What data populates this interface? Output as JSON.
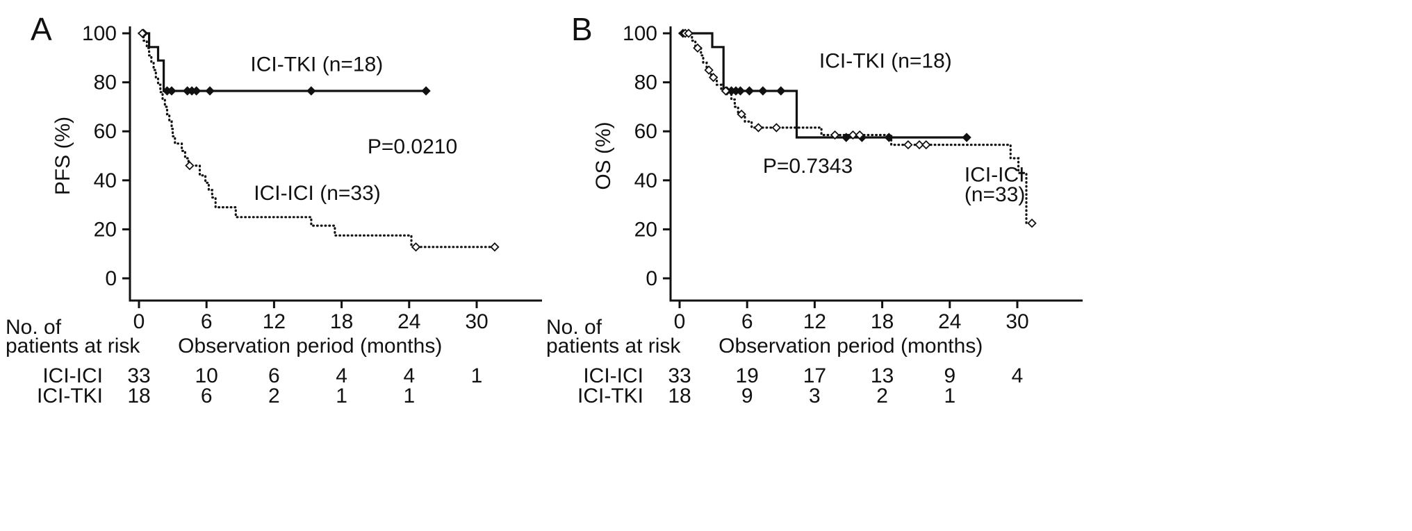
{
  "style": {
    "background": "#ffffff",
    "ink": "#111111"
  },
  "chart_data": [
    {
      "type": "line",
      "variant": "kaplan-meier-step",
      "panel_label": "A",
      "ylabel": "PFS (%)",
      "xlabel": "Observation period (months)",
      "xlim": [
        0,
        35.5
      ],
      "ylim": [
        0,
        100
      ],
      "xticks": [
        0,
        6,
        12,
        18,
        24,
        30
      ],
      "yticks": [
        0,
        20,
        40,
        60,
        80,
        100
      ],
      "grid": false,
      "p_value": "P=0.0210",
      "series": [
        {
          "name": "ICI-TKI (n=18)",
          "line": "solid",
          "steps": [
            [
              0,
              100
            ],
            [
              0.9,
              100
            ],
            [
              0.9,
              94.4
            ],
            [
              1.7,
              94.4
            ],
            [
              1.7,
              88.9
            ],
            [
              2.2,
              88.9
            ],
            [
              2.2,
              76.5
            ],
            [
              25.5,
              76.5
            ]
          ],
          "censors": [
            [
              0.4,
              100
            ],
            [
              2.5,
              76.5
            ],
            [
              2.9,
              76.5
            ],
            [
              4.3,
              76.5
            ],
            [
              4.7,
              76.5
            ],
            [
              5.1,
              76.5
            ],
            [
              6.3,
              76.5
            ],
            [
              15.3,
              76.5
            ],
            [
              25.5,
              76.5
            ]
          ]
        },
        {
          "name": "ICI-ICI (n=33)",
          "line": "dotted",
          "steps": [
            [
              0,
              100
            ],
            [
              0.4,
              100
            ],
            [
              0.4,
              97
            ],
            [
              0.7,
              97
            ],
            [
              0.7,
              94
            ],
            [
              0.9,
              94
            ],
            [
              0.9,
              91
            ],
            [
              1.1,
              91
            ],
            [
              1.1,
              88
            ],
            [
              1.3,
              88
            ],
            [
              1.3,
              85
            ],
            [
              1.5,
              85
            ],
            [
              1.5,
              82
            ],
            [
              1.7,
              82
            ],
            [
              1.7,
              79
            ],
            [
              1.9,
              79
            ],
            [
              1.9,
              76
            ],
            [
              2.1,
              76
            ],
            [
              2.1,
              73
            ],
            [
              2.3,
              73
            ],
            [
              2.3,
              70
            ],
            [
              2.5,
              70
            ],
            [
              2.5,
              67
            ],
            [
              2.7,
              67
            ],
            [
              2.7,
              64
            ],
            [
              2.9,
              64
            ],
            [
              2.9,
              61
            ],
            [
              3.0,
              61
            ],
            [
              3.0,
              58
            ],
            [
              3.2,
              58
            ],
            [
              3.2,
              55
            ],
            [
              3.8,
              55
            ],
            [
              3.8,
              52
            ],
            [
              4.1,
              52
            ],
            [
              4.1,
              49
            ],
            [
              4.4,
              49
            ],
            [
              4.4,
              46
            ],
            [
              5.4,
              46
            ],
            [
              5.4,
              42
            ],
            [
              5.9,
              42
            ],
            [
              5.9,
              39
            ],
            [
              6.2,
              39
            ],
            [
              6.2,
              36
            ],
            [
              6.5,
              36
            ],
            [
              6.5,
              33
            ],
            [
              6.8,
              33
            ],
            [
              6.8,
              29
            ],
            [
              8.6,
              29
            ],
            [
              8.6,
              25
            ],
            [
              15.3,
              25
            ],
            [
              15.3,
              21.5
            ],
            [
              17.4,
              21.5
            ],
            [
              17.4,
              17.5
            ],
            [
              24.2,
              17.5
            ],
            [
              24.2,
              12.8
            ],
            [
              31.6,
              12.8
            ]
          ],
          "censors": [
            [
              0.3,
              100
            ],
            [
              4.5,
              46
            ],
            [
              24.6,
              12.8
            ],
            [
              31.6,
              12.8
            ]
          ]
        }
      ],
      "annotations": [
        {
          "text": "ICI-TKI (n=18)",
          "x": 9.9,
          "y": 84.5,
          "name": "series-label-ici-tki"
        },
        {
          "text": "P=0.0210",
          "x": 20.3,
          "y": 51,
          "name": "p-value-label"
        },
        {
          "text": "ICI-ICI (n=33)",
          "x": 10.2,
          "y": 32,
          "name": "series-label-ici-ici"
        }
      ],
      "risk_table": {
        "caption_line1": "No. of",
        "caption_line2": "patients at risk",
        "times": [
          0,
          6,
          12,
          18,
          24,
          30
        ],
        "rows": [
          {
            "label": "ICI-ICI",
            "counts": [
              "33",
              "10",
              "6",
              "4",
              "4",
              "1"
            ]
          },
          {
            "label": "ICI-TKI",
            "counts": [
              "18",
              "6",
              "2",
              "1",
              "1",
              ""
            ]
          }
        ]
      }
    },
    {
      "type": "line",
      "variant": "kaplan-meier-step",
      "panel_label": "B",
      "ylabel": "OS (%)",
      "xlabel": "Observation period (months)",
      "xlim": [
        0,
        35.5
      ],
      "ylim": [
        0,
        100
      ],
      "xticks": [
        0,
        6,
        12,
        18,
        24,
        30
      ],
      "yticks": [
        0,
        20,
        40,
        60,
        80,
        100
      ],
      "grid": false,
      "p_value": "P=0.7343",
      "series": [
        {
          "name": "ICI-TKI (n=18)",
          "line": "solid",
          "steps": [
            [
              0,
              100
            ],
            [
              2.9,
              100
            ],
            [
              2.9,
              94.4
            ],
            [
              3.9,
              94.4
            ],
            [
              3.9,
              76.5
            ],
            [
              10.4,
              76.5
            ],
            [
              10.4,
              57.5
            ],
            [
              25.5,
              57.5
            ]
          ],
          "censors": [
            [
              0.3,
              100
            ],
            [
              4.2,
              76.5
            ],
            [
              4.6,
              76.5
            ],
            [
              5.0,
              76.5
            ],
            [
              5.4,
              76.5
            ],
            [
              6.2,
              76.5
            ],
            [
              7.4,
              76.5
            ],
            [
              9.0,
              76.5
            ],
            [
              14.8,
              57.5
            ],
            [
              16.2,
              57.5
            ],
            [
              18.6,
              57.5
            ],
            [
              25.5,
              57.5
            ]
          ]
        },
        {
          "name": "ICI-ICI (n=33)",
          "line": "dotted",
          "steps": [
            [
              0,
              100
            ],
            [
              1.1,
              100
            ],
            [
              1.1,
              97
            ],
            [
              1.4,
              97
            ],
            [
              1.4,
              94
            ],
            [
              1.9,
              94
            ],
            [
              1.9,
              91
            ],
            [
              2.1,
              91
            ],
            [
              2.1,
              88
            ],
            [
              2.4,
              88
            ],
            [
              2.4,
              85
            ],
            [
              2.8,
              85
            ],
            [
              2.8,
              82
            ],
            [
              3.3,
              82
            ],
            [
              3.3,
              79
            ],
            [
              3.7,
              79
            ],
            [
              3.7,
              76.5
            ],
            [
              4.6,
              76.5
            ],
            [
              4.6,
              73
            ],
            [
              4.9,
              73
            ],
            [
              4.9,
              70
            ],
            [
              5.2,
              70
            ],
            [
              5.2,
              67
            ],
            [
              5.8,
              67
            ],
            [
              5.8,
              64
            ],
            [
              6.4,
              64
            ],
            [
              6.4,
              61.5
            ],
            [
              12.6,
              61.5
            ],
            [
              12.6,
              58.5
            ],
            [
              18.8,
              58.5
            ],
            [
              18.8,
              54.5
            ],
            [
              29.4,
              54.5
            ],
            [
              29.4,
              49
            ],
            [
              30.1,
              49
            ],
            [
              30.1,
              43
            ],
            [
              30.8,
              43
            ],
            [
              30.8,
              22.5
            ],
            [
              31.3,
              22.5
            ]
          ],
          "censors": [
            [
              0.5,
              100
            ],
            [
              0.8,
              100
            ],
            [
              1.6,
              94
            ],
            [
              2.6,
              85
            ],
            [
              3.0,
              82
            ],
            [
              4.1,
              76.5
            ],
            [
              5.5,
              67
            ],
            [
              7.0,
              61.5
            ],
            [
              8.6,
              61.5
            ],
            [
              13.8,
              58.5
            ],
            [
              15.4,
              58.5
            ],
            [
              16.0,
              58.5
            ],
            [
              20.3,
              54.5
            ],
            [
              21.3,
              54.5
            ],
            [
              21.9,
              54.5
            ],
            [
              31.3,
              22.5
            ]
          ]
        }
      ],
      "annotations": [
        {
          "text": "ICI-TKI (n=18)",
          "x": 12.4,
          "y": 86,
          "name": "series-label-ici-tki"
        },
        {
          "text": "P=0.7343",
          "x": 7.4,
          "y": 43,
          "name": "p-value-label"
        },
        {
          "text": "ICI-ICI",
          "x": 25.3,
          "y": 39.5,
          "name": "series-label-ici-ici"
        },
        {
          "text": "(n=33)",
          "x": 25.3,
          "y": 31.5,
          "name": "series-label-ici-ici-n"
        }
      ],
      "risk_table": {
        "caption_line1": "No. of",
        "caption_line2": "patients at risk",
        "times": [
          0,
          6,
          12,
          18,
          24,
          30
        ],
        "rows": [
          {
            "label": "ICI-ICI",
            "counts": [
              "33",
              "19",
              "17",
              "13",
              "9",
              "4"
            ]
          },
          {
            "label": "ICI-TKI",
            "counts": [
              "18",
              "9",
              "3",
              "2",
              "1",
              ""
            ]
          }
        ]
      }
    }
  ]
}
